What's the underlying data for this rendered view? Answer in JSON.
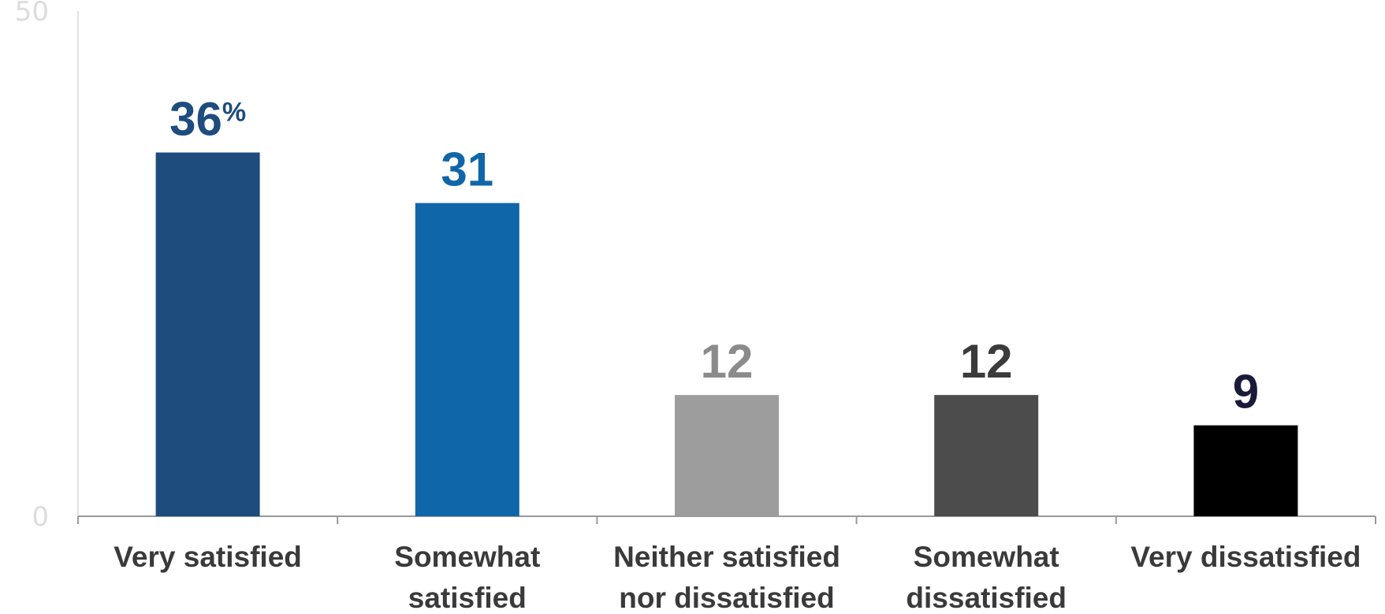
{
  "chart_data": {
    "type": "bar",
    "categories": [
      "Very satisfied",
      "Somewhat satisfied",
      "Neither satisfied nor dissatisfied",
      "Somewhat dissatisfied",
      "Very dissatisfied"
    ],
    "category_lines": [
      [
        "Very satisfied"
      ],
      [
        "Somewhat",
        "satisfied"
      ],
      [
        "Neither satisfied",
        "nor dissatisfied"
      ],
      [
        "Somewhat",
        "dissatisfied"
      ],
      [
        "Very dissatisfied"
      ]
    ],
    "values": [
      36,
      31,
      12,
      12,
      9
    ],
    "data_labels": [
      "36",
      "31",
      "12",
      "12",
      "9"
    ],
    "first_label_suffix": "%",
    "bar_colors": [
      "#1d4c7d",
      "#0f66a9",
      "#9c9d9c",
      "#4b4c4b",
      "#000000"
    ],
    "label_colors": [
      "#1d4c7d",
      "#0f66a9",
      "#8a8b8a",
      "#3a3b3a",
      "#1a1a3a"
    ],
    "ylim": [
      0,
      50
    ],
    "y_ticks": [
      "0",
      "50"
    ],
    "title": "",
    "xlabel": "",
    "ylabel": "",
    "legend": "none",
    "grid": false
  }
}
